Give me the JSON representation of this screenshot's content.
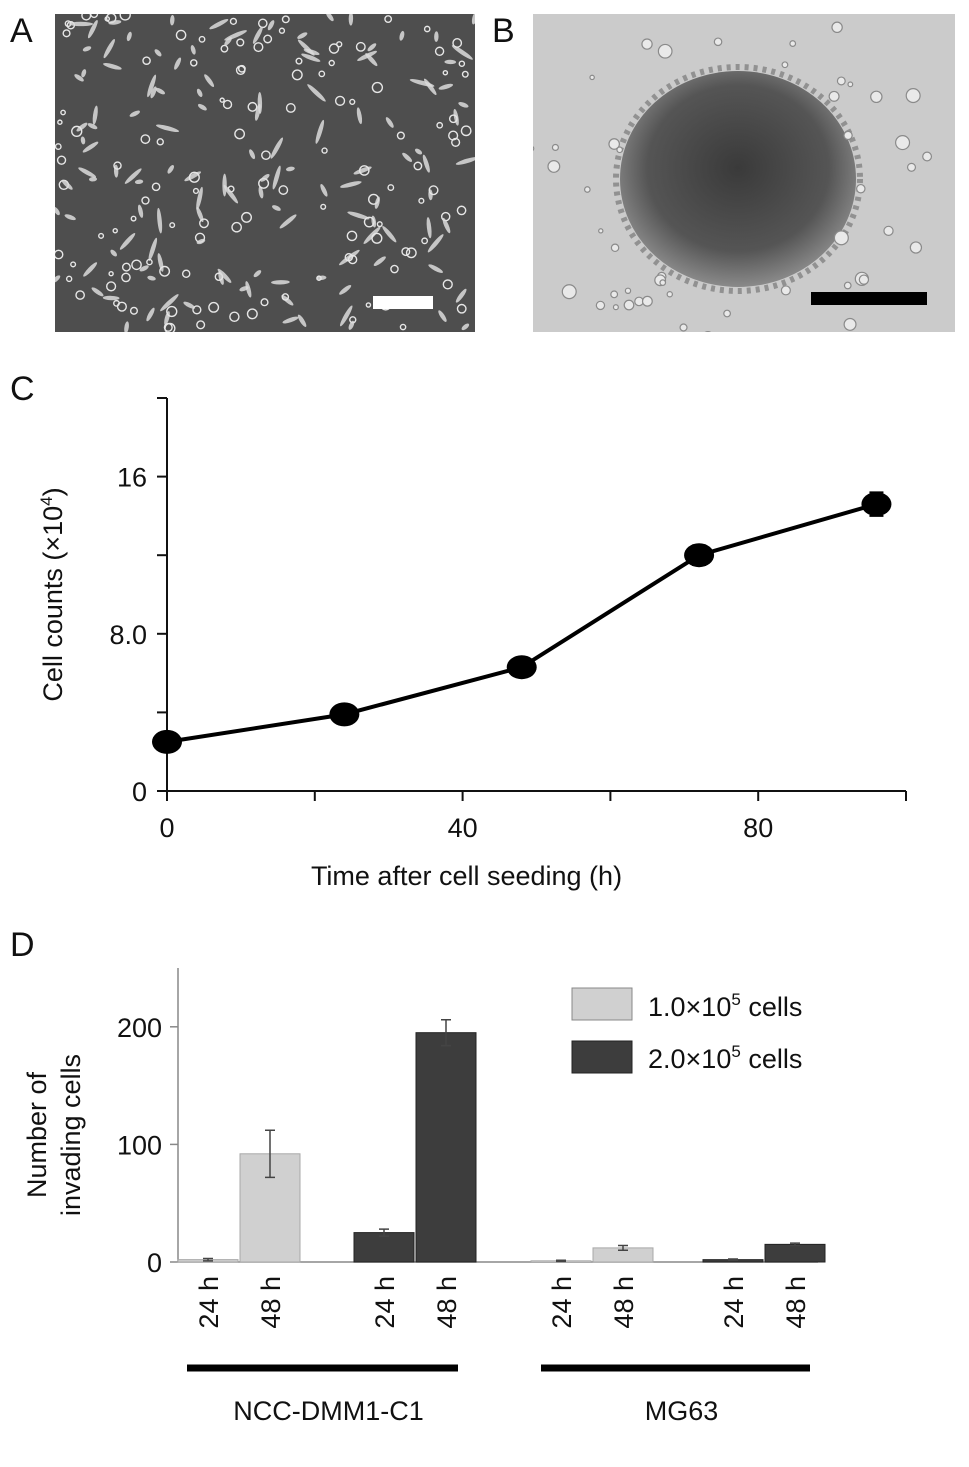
{
  "panels": {
    "a": "A",
    "b": "B",
    "c": "C",
    "d": "D"
  },
  "chart_data": [
    {
      "panel": "C",
      "type": "line",
      "title": "",
      "xlabel": "Time after cell seeding (h)",
      "ylabel": "Cell counts (×10",
      "ylabel_sup": "4",
      "ylabel_end": ")",
      "xlim": [
        0,
        100
      ],
      "ylim": [
        0,
        20
      ],
      "x_ticks": [
        0,
        40,
        80
      ],
      "x_tick_labels": [
        "0",
        "40",
        "80"
      ],
      "x_minor_ticks": [
        20,
        60,
        100
      ],
      "y_ticks": [
        0,
        8,
        16
      ],
      "y_tick_labels": [
        "0",
        "8.0",
        "16"
      ],
      "y_minor_ticks": [
        4,
        12,
        20
      ],
      "x": [
        0,
        24,
        48,
        72,
        96
      ],
      "y": [
        2.5,
        3.9,
        6.3,
        12.0,
        14.6
      ],
      "error": [
        0.2,
        0.2,
        0.2,
        0.5,
        0.6
      ],
      "grid": false
    },
    {
      "panel": "D",
      "type": "bar",
      "title": "",
      "ylabel_line1": "Number of",
      "ylabel_line2": "invading cells",
      "ylim": [
        0,
        250
      ],
      "y_ticks": [
        0,
        100,
        200
      ],
      "y_tick_labels": [
        "0",
        "100",
        "200"
      ],
      "categories": [
        "24 h",
        "48 h",
        "24 h",
        "48 h",
        "24 h",
        "48 h",
        "24 h",
        "48 h"
      ],
      "values": [
        2,
        92,
        25,
        195,
        1,
        12,
        2,
        15
      ],
      "error": [
        1,
        20,
        3,
        11,
        0.5,
        2,
        0.5,
        1
      ],
      "seeding": [
        1,
        1,
        2,
        2,
        1,
        1,
        2,
        2
      ],
      "groups": [
        {
          "name": "NCC-DMM1-C1",
          "bars": [
            0,
            1,
            2,
            3
          ]
        },
        {
          "name": "MG63",
          "bars": [
            4,
            5,
            6,
            7
          ]
        }
      ],
      "legend": {
        "placement": "top-right",
        "entries": [
          {
            "prefix": "1.0×10",
            "sup": "5",
            "suffix": " cells",
            "color": "#d0d0d0"
          },
          {
            "prefix": "2.0×10",
            "sup": "5",
            "suffix": " cells",
            "color": "#3d3d3d"
          }
        ]
      },
      "colors": {
        "light": "#d0d0d0",
        "dark": "#3d3d3d"
      },
      "grid": false
    }
  ]
}
